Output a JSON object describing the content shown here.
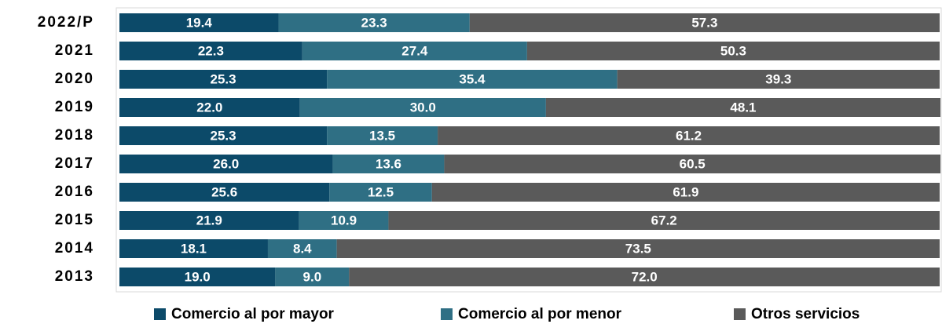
{
  "chart_data": {
    "type": "bar",
    "orientation": "horizontal",
    "stacked": true,
    "categories": [
      "2022/P",
      "2021",
      "2020",
      "2019",
      "2018",
      "2017",
      "2016",
      "2015",
      "2014",
      "2013"
    ],
    "xlim": [
      0,
      100
    ],
    "series": [
      {
        "name": "Comercio al por mayor",
        "color": "#0c4a69",
        "values": [
          19.4,
          22.3,
          25.3,
          22.0,
          25.3,
          26.0,
          25.6,
          21.9,
          18.1,
          19.0
        ],
        "value_labels": [
          "19.4",
          "22.3",
          "25.3",
          "22.0",
          "25.3",
          "26.0",
          "25.6",
          "21.9",
          "18.1",
          "19.0"
        ]
      },
      {
        "name": "Comercio al por menor",
        "color": "#2f6f84",
        "values": [
          23.3,
          27.4,
          35.4,
          30.0,
          13.5,
          13.6,
          12.5,
          10.9,
          8.4,
          9.0
        ],
        "value_labels": [
          "23.3",
          "27.4",
          "35.4",
          "30.0",
          "13.5",
          "13.6",
          "12.5",
          "10.9",
          "8.4",
          "9.0"
        ]
      },
      {
        "name": "Otros servicios",
        "color": "#5a5a5a",
        "values": [
          57.3,
          50.3,
          39.3,
          48.1,
          61.2,
          60.5,
          61.9,
          67.2,
          73.5,
          72.0
        ],
        "value_labels": [
          "57.3",
          "50.3",
          "39.3",
          "48.1",
          "61.2",
          "60.5",
          "61.9",
          "67.2",
          "73.5",
          "72.0"
        ]
      }
    ]
  }
}
